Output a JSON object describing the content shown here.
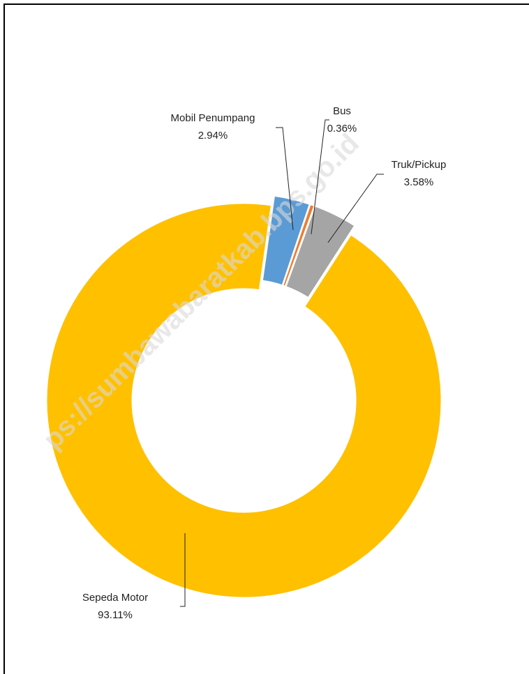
{
  "chart_data": {
    "type": "donut",
    "categories": [
      "Mobil Penumpang",
      "Bus",
      "Truk/Pickup",
      "Sepeda Motor"
    ],
    "values": [
      2.94,
      0.36,
      3.58,
      93.11
    ],
    "value_labels": [
      "2.94%",
      "0.36%",
      "3.58%",
      "93.11%"
    ],
    "colors": [
      "#5b9bd5",
      "#ed7d31",
      "#a5a5a5",
      "#ffc000"
    ],
    "watermark": "ps://sumbawabaratkab.bps.go.id"
  }
}
